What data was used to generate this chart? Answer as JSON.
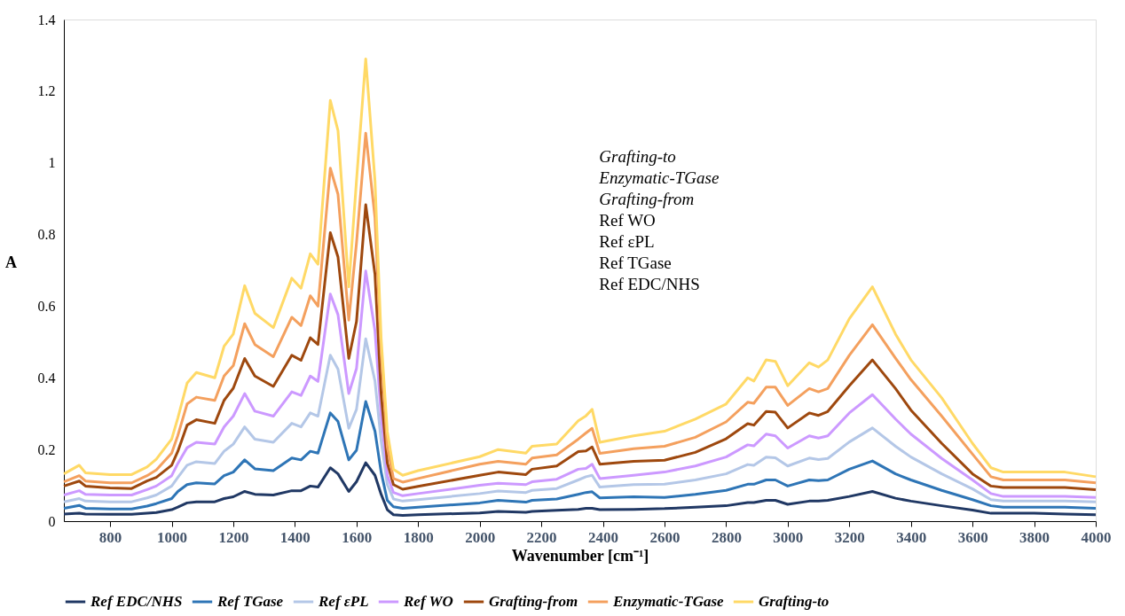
{
  "chart_data": {
    "type": "line",
    "xlabel": "Wavenumber [cm⁻¹]",
    "ylabel": "A",
    "xlim": [
      650,
      4000
    ],
    "xticks": [
      800,
      1000,
      1200,
      1400,
      1600,
      1800,
      2000,
      2200,
      2400,
      2600,
      2800,
      3000,
      3200,
      3400,
      3600,
      3800,
      4000
    ],
    "ylim": [
      0,
      1.4
    ],
    "yticks": [
      0,
      0.2,
      0.4,
      0.6,
      0.8,
      1,
      1.2,
      1.4
    ],
    "grid": false,
    "legend": "bottom",
    "marker": "none",
    "line_style": "solid",
    "annotations": [
      "Grafting-to",
      "Enzymatic-TGase",
      "Grafting-from",
      "Ref WO",
      "Ref εPL",
      "Ref TGase",
      "Ref EDC/NHS"
    ],
    "x": [
      650,
      700,
      720,
      800,
      870,
      920,
      950,
      1000,
      1020,
      1050,
      1080,
      1140,
      1170,
      1200,
      1237,
      1270,
      1330,
      1390,
      1420,
      1450,
      1475,
      1515,
      1540,
      1575,
      1600,
      1630,
      1660,
      1680,
      1700,
      1720,
      1750,
      1800,
      2000,
      2060,
      2150,
      2170,
      2250,
      2320,
      2345,
      2365,
      2390,
      2500,
      2600,
      2700,
      2800,
      2870,
      2890,
      2930,
      2960,
      3000,
      3070,
      3100,
      3130,
      3200,
      3275,
      3350,
      3400,
      3500,
      3600,
      3660,
      3700,
      3800,
      3900,
      4000
    ],
    "series": [
      {
        "name": "Ref EDC/NHS",
        "color": "#203864",
        "values": [
          0.02,
          0.022,
          0.02,
          0.019,
          0.019,
          0.022,
          0.024,
          0.032,
          0.039,
          0.051,
          0.054,
          0.054,
          0.063,
          0.068,
          0.083,
          0.075,
          0.073,
          0.085,
          0.085,
          0.098,
          0.095,
          0.149,
          0.132,
          0.083,
          0.11,
          0.163,
          0.128,
          0.075,
          0.032,
          0.018,
          0.016,
          0.018,
          0.023,
          0.027,
          0.025,
          0.027,
          0.03,
          0.033,
          0.036,
          0.036,
          0.032,
          0.033,
          0.035,
          0.039,
          0.043,
          0.052,
          0.052,
          0.058,
          0.058,
          0.047,
          0.056,
          0.056,
          0.058,
          0.069,
          0.083,
          0.064,
          0.056,
          0.043,
          0.031,
          0.022,
          0.022,
          0.022,
          0.02,
          0.018
        ]
      },
      {
        "name": "Ref TGase",
        "color": "#2e75b6",
        "values": [
          0.036,
          0.044,
          0.036,
          0.034,
          0.034,
          0.042,
          0.049,
          0.063,
          0.083,
          0.102,
          0.107,
          0.104,
          0.127,
          0.137,
          0.171,
          0.146,
          0.141,
          0.176,
          0.171,
          0.195,
          0.19,
          0.302,
          0.278,
          0.171,
          0.198,
          0.334,
          0.251,
          0.137,
          0.058,
          0.04,
          0.036,
          0.039,
          0.051,
          0.058,
          0.053,
          0.058,
          0.062,
          0.075,
          0.08,
          0.082,
          0.065,
          0.068,
          0.066,
          0.075,
          0.086,
          0.103,
          0.103,
          0.115,
          0.115,
          0.098,
          0.115,
          0.113,
          0.115,
          0.145,
          0.168,
          0.132,
          0.115,
          0.086,
          0.06,
          0.043,
          0.039,
          0.039,
          0.039,
          0.036
        ]
      },
      {
        "name": "Ref εPL",
        "color": "#b4c7e7",
        "values": [
          0.054,
          0.063,
          0.056,
          0.054,
          0.054,
          0.065,
          0.073,
          0.098,
          0.122,
          0.156,
          0.166,
          0.161,
          0.195,
          0.215,
          0.263,
          0.229,
          0.22,
          0.273,
          0.263,
          0.302,
          0.293,
          0.463,
          0.424,
          0.259,
          0.312,
          0.509,
          0.391,
          0.224,
          0.102,
          0.062,
          0.056,
          0.06,
          0.077,
          0.084,
          0.08,
          0.086,
          0.091,
          0.115,
          0.124,
          0.128,
          0.095,
          0.102,
          0.103,
          0.115,
          0.132,
          0.158,
          0.156,
          0.179,
          0.177,
          0.154,
          0.176,
          0.172,
          0.175,
          0.221,
          0.26,
          0.209,
          0.179,
          0.132,
          0.09,
          0.06,
          0.056,
          0.056,
          0.056,
          0.054
        ]
      },
      {
        "name": "Ref WO",
        "color": "#cc99ff",
        "values": [
          0.073,
          0.085,
          0.075,
          0.073,
          0.073,
          0.088,
          0.098,
          0.127,
          0.161,
          0.205,
          0.22,
          0.215,
          0.263,
          0.293,
          0.356,
          0.307,
          0.293,
          0.361,
          0.351,
          0.405,
          0.39,
          0.634,
          0.576,
          0.356,
          0.426,
          0.698,
          0.531,
          0.294,
          0.128,
          0.08,
          0.071,
          0.077,
          0.1,
          0.106,
          0.102,
          0.11,
          0.117,
          0.145,
          0.147,
          0.159,
          0.119,
          0.128,
          0.137,
          0.154,
          0.179,
          0.213,
          0.21,
          0.243,
          0.238,
          0.204,
          0.238,
          0.232,
          0.238,
          0.302,
          0.353,
          0.285,
          0.243,
          0.175,
          0.115,
          0.077,
          0.069,
          0.069,
          0.069,
          0.066
        ]
      },
      {
        "name": "Grafting-from",
        "color": "#9e480e",
        "values": [
          0.098,
          0.112,
          0.098,
          0.093,
          0.091,
          0.112,
          0.122,
          0.156,
          0.195,
          0.268,
          0.283,
          0.273,
          0.337,
          0.371,
          0.454,
          0.405,
          0.376,
          0.463,
          0.449,
          0.512,
          0.493,
          0.805,
          0.737,
          0.454,
          0.557,
          0.883,
          0.689,
          0.356,
          0.163,
          0.102,
          0.089,
          0.097,
          0.128,
          0.137,
          0.13,
          0.145,
          0.154,
          0.194,
          0.196,
          0.207,
          0.159,
          0.167,
          0.17,
          0.192,
          0.23,
          0.272,
          0.268,
          0.306,
          0.304,
          0.26,
          0.302,
          0.295,
          0.306,
          0.378,
          0.45,
          0.37,
          0.31,
          0.217,
          0.132,
          0.098,
          0.094,
          0.094,
          0.094,
          0.088
        ]
      },
      {
        "name": "Enzymatic-TGase",
        "color": "#f4a05e",
        "values": [
          0.11,
          0.127,
          0.112,
          0.107,
          0.107,
          0.127,
          0.143,
          0.19,
          0.239,
          0.327,
          0.346,
          0.337,
          0.405,
          0.434,
          0.551,
          0.493,
          0.459,
          0.569,
          0.546,
          0.629,
          0.6,
          0.985,
          0.912,
          0.561,
          0.776,
          1.083,
          0.847,
          0.47,
          0.207,
          0.119,
          0.109,
          0.119,
          0.159,
          0.167,
          0.159,
          0.176,
          0.185,
          0.229,
          0.246,
          0.259,
          0.189,
          0.202,
          0.209,
          0.234,
          0.277,
          0.332,
          0.329,
          0.374,
          0.374,
          0.323,
          0.37,
          0.361,
          0.37,
          0.463,
          0.548,
          0.455,
          0.395,
          0.293,
          0.187,
          0.124,
          0.115,
          0.115,
          0.115,
          0.107
        ]
      },
      {
        "name": "Grafting-to",
        "color": "#ffd966",
        "values": [
          0.132,
          0.156,
          0.135,
          0.13,
          0.13,
          0.151,
          0.173,
          0.229,
          0.288,
          0.385,
          0.415,
          0.4,
          0.488,
          0.522,
          0.657,
          0.58,
          0.54,
          0.678,
          0.65,
          0.746,
          0.717,
          1.174,
          1.09,
          0.654,
          0.95,
          1.29,
          0.95,
          0.51,
          0.25,
          0.145,
          0.128,
          0.141,
          0.18,
          0.2,
          0.19,
          0.209,
          0.215,
          0.28,
          0.294,
          0.312,
          0.22,
          0.238,
          0.251,
          0.285,
          0.327,
          0.4,
          0.391,
          0.45,
          0.446,
          0.378,
          0.442,
          0.43,
          0.45,
          0.565,
          0.654,
          0.522,
          0.45,
          0.344,
          0.217,
          0.149,
          0.137,
          0.137,
          0.137,
          0.124
        ]
      }
    ]
  }
}
